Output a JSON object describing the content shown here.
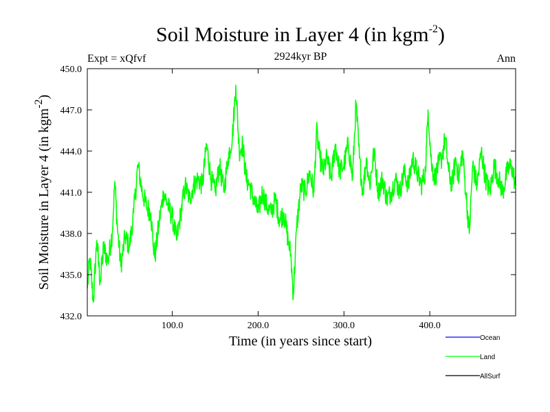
{
  "chart_data": {
    "type": "line",
    "title_main": "Soil Moisture in Layer 4 (in kgm",
    "title_sup": "-2",
    "title_close": ")",
    "subtitle": "2924kyr BP",
    "expt_label": "Expt = xQfvf",
    "season_label": "Ann",
    "xlabel": "Time (in years since start)",
    "ylabel_main": "Soil Moisture in Layer 4 (in kgm",
    "ylabel_sup": "-2",
    "ylabel_close": ")",
    "xlim": [
      1,
      500
    ],
    "ylim": [
      432.0,
      450.0
    ],
    "xticks": [
      100,
      200,
      300,
      400
    ],
    "xtick_labels": [
      "100.0",
      "200.0",
      "300.0",
      "400.0"
    ],
    "yticks": [
      432,
      435,
      438,
      441,
      444,
      447,
      450
    ],
    "ytick_labels": [
      "432.0",
      "435.0",
      "438.0",
      "441.0",
      "444.0",
      "447.0",
      "450.0"
    ],
    "legend": [
      {
        "name": "Ocean",
        "color": "#0000ff"
      },
      {
        "name": "Land",
        "color": "#00ff00"
      },
      {
        "name": "AllSurf",
        "color": "#000000"
      }
    ],
    "series": [
      {
        "name": "Land",
        "color": "#00ff00",
        "anchors": [
          [
            1,
            434.0
          ],
          [
            4,
            436.2
          ],
          [
            8,
            433.0
          ],
          [
            12,
            437.5
          ],
          [
            16,
            434.5
          ],
          [
            20,
            437.0
          ],
          [
            25,
            436.0
          ],
          [
            30,
            438.0
          ],
          [
            33,
            441.8
          ],
          [
            36,
            438.5
          ],
          [
            40,
            435.6
          ],
          [
            45,
            437.8
          ],
          [
            50,
            437.0
          ],
          [
            55,
            439.5
          ],
          [
            60,
            443.0
          ],
          [
            65,
            441.0
          ],
          [
            70,
            440.0
          ],
          [
            75,
            439.5
          ],
          [
            78,
            437.0
          ],
          [
            80,
            436.4
          ],
          [
            85,
            439.0
          ],
          [
            90,
            441.0
          ],
          [
            95,
            440.0
          ],
          [
            100,
            439.2
          ],
          [
            105,
            437.5
          ],
          [
            110,
            439.5
          ],
          [
            115,
            441.5
          ],
          [
            120,
            440.5
          ],
          [
            125,
            441.5
          ],
          [
            130,
            442.0
          ],
          [
            135,
            441.5
          ],
          [
            140,
            444.5
          ],
          [
            145,
            442.0
          ],
          [
            150,
            441.0
          ],
          [
            155,
            443.0
          ],
          [
            160,
            441.0
          ],
          [
            165,
            443.5
          ],
          [
            170,
            445.0
          ],
          [
            174,
            448.8
          ],
          [
            178,
            444.0
          ],
          [
            182,
            444.5
          ],
          [
            186,
            442.0
          ],
          [
            190,
            441.5
          ],
          [
            195,
            440.5
          ],
          [
            200,
            439.5
          ],
          [
            205,
            441.0
          ],
          [
            210,
            440.0
          ],
          [
            215,
            439.5
          ],
          [
            220,
            440.5
          ],
          [
            225,
            439.0
          ],
          [
            230,
            439.5
          ],
          [
            235,
            437.5
          ],
          [
            238,
            436.5
          ],
          [
            241,
            433.5
          ],
          [
            245,
            438.5
          ],
          [
            250,
            441.5
          ],
          [
            255,
            441.0
          ],
          [
            260,
            442.5
          ],
          [
            265,
            441.0
          ],
          [
            268,
            445.5
          ],
          [
            272,
            443.5
          ],
          [
            276,
            442.5
          ],
          [
            280,
            443.5
          ],
          [
            285,
            442.0
          ],
          [
            290,
            444.5
          ],
          [
            295,
            442.5
          ],
          [
            300,
            443.0
          ],
          [
            305,
            444.5
          ],
          [
            310,
            442.0
          ],
          [
            314,
            447.5
          ],
          [
            318,
            443.5
          ],
          [
            322,
            441.0
          ],
          [
            326,
            443.5
          ],
          [
            330,
            441.5
          ],
          [
            335,
            444.0
          ],
          [
            340,
            441.0
          ],
          [
            345,
            442.0
          ],
          [
            350,
            440.5
          ],
          [
            355,
            441.0
          ],
          [
            360,
            442.0
          ],
          [
            365,
            441.0
          ],
          [
            370,
            442.5
          ],
          [
            375,
            441.5
          ],
          [
            380,
            443.5
          ],
          [
            385,
            442.5
          ],
          [
            390,
            441.5
          ],
          [
            395,
            442.5
          ],
          [
            398,
            447.0
          ],
          [
            402,
            443.0
          ],
          [
            406,
            442.0
          ],
          [
            410,
            443.0
          ],
          [
            414,
            443.5
          ],
          [
            418,
            445.0
          ],
          [
            422,
            442.5
          ],
          [
            426,
            441.5
          ],
          [
            430,
            443.5
          ],
          [
            434,
            442.0
          ],
          [
            438,
            444.0
          ],
          [
            442,
            441.0
          ],
          [
            446,
            438.0
          ],
          [
            450,
            443.0
          ],
          [
            455,
            441.5
          ],
          [
            460,
            444.0
          ],
          [
            465,
            442.0
          ],
          [
            470,
            441.0
          ],
          [
            475,
            443.0
          ],
          [
            480,
            442.0
          ],
          [
            485,
            441.0
          ],
          [
            490,
            442.5
          ],
          [
            495,
            443.0
          ],
          [
            500,
            441.5
          ]
        ]
      }
    ]
  }
}
